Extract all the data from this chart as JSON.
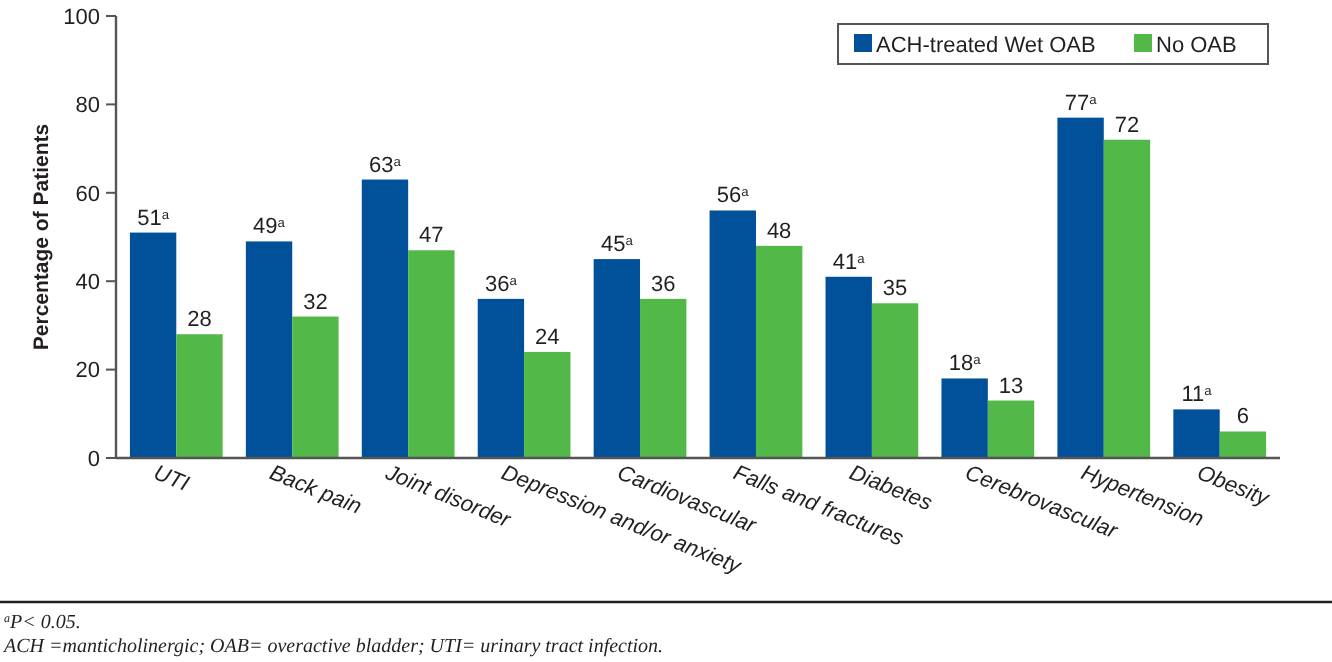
{
  "chart_data": {
    "type": "bar",
    "ylabel": "Percentage of Patients",
    "categories": [
      "UTI",
      "Back pain",
      "Joint disorder",
      "Depression and/or anxiety",
      "Cardiovascular",
      "Falls and fractures",
      "Diabetes",
      "Cerebrovascular",
      "Hypertension",
      "Obesity"
    ],
    "series": [
      {
        "name": "ACH-treated Wet OAB",
        "color": "#00509a",
        "values": [
          51,
          49,
          63,
          36,
          45,
          56,
          41,
          18,
          77,
          11
        ],
        "value_labels": [
          "51$^{a}$",
          "49$^{a}$",
          "63$^{a}$",
          "36$^{a}$",
          "45$^{a}$",
          "56$^{a}$",
          "41$^{a}$",
          "18$^{a}$",
          "77$^{a}$",
          "11$^{a}$"
        ]
      },
      {
        "name": "No OAB",
        "color": "#52b848",
        "values": [
          28,
          32,
          47,
          24,
          36,
          48,
          35,
          13,
          72,
          6
        ],
        "value_labels": [
          "28",
          "32",
          "47",
          "24",
          "36",
          "48",
          "35",
          "13",
          "72",
          "6"
        ]
      }
    ],
    "ylim": [
      0,
      100
    ],
    "yticks": [
      0,
      20,
      40,
      60,
      80,
      100
    ],
    "grid": false,
    "legend": "top right",
    "annotations": [
      "$^{a}$P< 0.05.",
      "ACH =manticholinergic; OAB= overactive bladder; UTI= urinary tract infection."
    ]
  }
}
